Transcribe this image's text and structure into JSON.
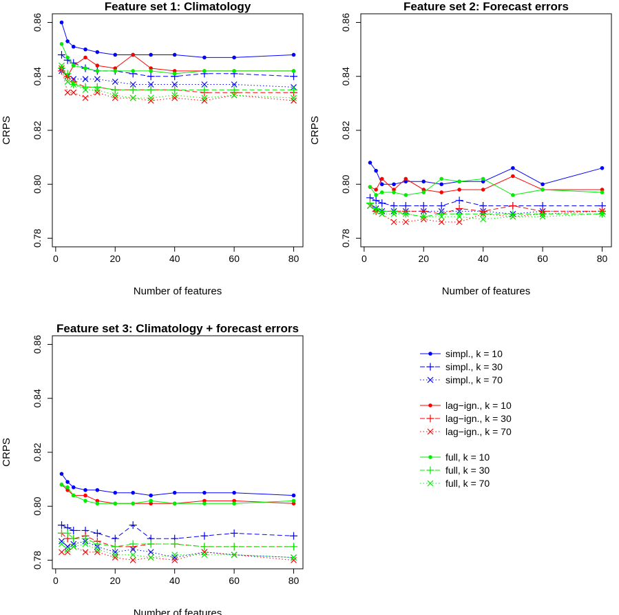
{
  "chart_data": [
    {
      "type": "line",
      "title": "Feature set 1: Climatology",
      "xlabel": "Number of features",
      "ylabel": "CRPS",
      "xlim": [
        2,
        80
      ],
      "ylim": [
        0.78,
        0.86
      ],
      "xticks": [
        "0",
        "20",
        "40",
        "60",
        "80"
      ],
      "yticks": [
        "0.78",
        "0.80",
        "0.82",
        "0.84",
        "0.86"
      ],
      "x": [
        2,
        4,
        6,
        10,
        14,
        20,
        26,
        32,
        40,
        50,
        60,
        80
      ],
      "series": [
        {
          "id": "s10",
          "values": [
            0.86,
            0.853,
            0.851,
            0.85,
            0.849,
            0.848,
            0.848,
            0.848,
            0.848,
            0.847,
            0.847,
            0.848
          ]
        },
        {
          "id": "s30",
          "values": [
            0.848,
            0.846,
            0.845,
            0.843,
            0.842,
            0.842,
            0.841,
            0.84,
            0.84,
            0.841,
            0.841,
            0.84
          ]
        },
        {
          "id": "s70",
          "values": [
            0.842,
            0.84,
            0.839,
            0.839,
            0.839,
            0.838,
            0.837,
            0.837,
            0.837,
            0.837,
            0.837,
            0.836
          ]
        },
        {
          "id": "l10",
          "values": [
            0.843,
            0.84,
            0.844,
            0.847,
            0.844,
            0.843,
            0.848,
            0.843,
            0.842,
            0.842,
            0.842,
            0.842
          ]
        },
        {
          "id": "l30",
          "values": [
            0.842,
            0.84,
            0.838,
            0.836,
            0.836,
            0.835,
            0.835,
            0.835,
            0.835,
            0.834,
            0.834,
            0.834
          ]
        },
        {
          "id": "l70",
          "values": [
            0.843,
            0.834,
            0.834,
            0.832,
            0.834,
            0.832,
            0.832,
            0.831,
            0.832,
            0.831,
            0.833,
            0.831
          ]
        },
        {
          "id": "f10",
          "values": [
            0.852,
            0.847,
            0.844,
            0.843,
            0.842,
            0.842,
            0.842,
            0.842,
            0.841,
            0.842,
            0.842,
            0.842
          ]
        },
        {
          "id": "f30",
          "values": [
            0.843,
            0.841,
            0.837,
            0.836,
            0.836,
            0.835,
            0.835,
            0.835,
            0.835,
            0.835,
            0.835,
            0.835
          ]
        },
        {
          "id": "f70",
          "values": [
            0.844,
            0.838,
            0.837,
            0.835,
            0.835,
            0.833,
            0.832,
            0.832,
            0.833,
            0.832,
            0.833,
            0.832
          ]
        }
      ]
    },
    {
      "type": "line",
      "title": "Feature set 2: Forecast errors",
      "xlabel": "Number of features",
      "ylabel": "CRPS",
      "xlim": [
        2,
        80
      ],
      "ylim": [
        0.78,
        0.86
      ],
      "xticks": [
        "0",
        "20",
        "40",
        "60",
        "80"
      ],
      "yticks": [
        "0.78",
        "0.80",
        "0.82",
        "0.84",
        "0.86"
      ],
      "x": [
        2,
        4,
        6,
        10,
        14,
        20,
        26,
        32,
        40,
        50,
        60,
        80
      ],
      "series": [
        {
          "id": "s10",
          "values": [
            0.808,
            0.805,
            0.8,
            0.8,
            0.801,
            0.801,
            0.8,
            0.801,
            0.801,
            0.806,
            0.8,
            0.806
          ]
        },
        {
          "id": "s30",
          "values": [
            0.795,
            0.794,
            0.793,
            0.792,
            0.792,
            0.792,
            0.792,
            0.794,
            0.792,
            0.792,
            0.792,
            0.792
          ]
        },
        {
          "id": "s70",
          "values": [
            0.792,
            0.791,
            0.79,
            0.79,
            0.79,
            0.79,
            0.79,
            0.79,
            0.79,
            0.789,
            0.79,
            0.79
          ]
        },
        {
          "id": "l10",
          "values": [
            0.799,
            0.798,
            0.802,
            0.798,
            0.802,
            0.798,
            0.797,
            0.798,
            0.798,
            0.803,
            0.798,
            0.798
          ]
        },
        {
          "id": "l30",
          "values": [
            0.793,
            0.79,
            0.79,
            0.79,
            0.79,
            0.79,
            0.789,
            0.791,
            0.79,
            0.792,
            0.79,
            0.79
          ]
        },
        {
          "id": "l70",
          "values": [
            0.792,
            0.79,
            0.789,
            0.786,
            0.786,
            0.787,
            0.786,
            0.786,
            0.789,
            0.788,
            0.789,
            0.79
          ]
        },
        {
          "id": "f10",
          "values": [
            0.799,
            0.796,
            0.797,
            0.797,
            0.796,
            0.797,
            0.802,
            0.801,
            0.802,
            0.796,
            0.798,
            0.797
          ]
        },
        {
          "id": "f30",
          "values": [
            0.793,
            0.791,
            0.79,
            0.79,
            0.789,
            0.788,
            0.789,
            0.789,
            0.789,
            0.789,
            0.789,
            0.789
          ]
        },
        {
          "id": "f70",
          "values": [
            0.792,
            0.79,
            0.789,
            0.789,
            0.789,
            0.788,
            0.788,
            0.788,
            0.787,
            0.788,
            0.788,
            0.789
          ]
        }
      ]
    },
    {
      "type": "line",
      "title": "Feature set 3: Climatology + forecast errors",
      "xlabel": "Number of features",
      "ylabel": "CRPS",
      "xlim": [
        2,
        80
      ],
      "ylim": [
        0.78,
        0.86
      ],
      "xticks": [
        "0",
        "20",
        "40",
        "60",
        "80"
      ],
      "yticks": [
        "0.78",
        "0.80",
        "0.82",
        "0.84",
        "0.86"
      ],
      "x": [
        2,
        4,
        6,
        10,
        14,
        20,
        26,
        32,
        40,
        50,
        60,
        80
      ],
      "series": [
        {
          "id": "s10",
          "values": [
            0.812,
            0.809,
            0.807,
            0.806,
            0.806,
            0.805,
            0.805,
            0.804,
            0.805,
            0.805,
            0.805,
            0.804
          ]
        },
        {
          "id": "s30",
          "values": [
            0.793,
            0.792,
            0.791,
            0.791,
            0.79,
            0.788,
            0.793,
            0.788,
            0.788,
            0.789,
            0.79,
            0.789
          ]
        },
        {
          "id": "s70",
          "values": [
            0.787,
            0.785,
            0.786,
            0.787,
            0.785,
            0.783,
            0.784,
            0.783,
            0.781,
            0.783,
            0.782,
            0.781
          ]
        },
        {
          "id": "l10",
          "values": [
            0.808,
            0.806,
            0.804,
            0.804,
            0.802,
            0.801,
            0.801,
            0.801,
            0.801,
            0.802,
            0.802,
            0.801
          ]
        },
        {
          "id": "l30",
          "values": [
            0.79,
            0.788,
            0.788,
            0.789,
            0.787,
            0.785,
            0.785,
            0.786,
            0.786,
            0.785,
            0.785,
            0.785
          ]
        },
        {
          "id": "l70",
          "values": [
            0.783,
            0.783,
            0.785,
            0.783,
            0.783,
            0.781,
            0.78,
            0.781,
            0.78,
            0.783,
            0.782,
            0.78
          ]
        },
        {
          "id": "f10",
          "values": [
            0.808,
            0.807,
            0.804,
            0.802,
            0.801,
            0.801,
            0.801,
            0.802,
            0.801,
            0.801,
            0.801,
            0.802
          ]
        },
        {
          "id": "f30",
          "values": [
            0.79,
            0.79,
            0.788,
            0.788,
            0.786,
            0.785,
            0.786,
            0.786,
            0.786,
            0.785,
            0.785,
            0.785
          ]
        },
        {
          "id": "f70",
          "values": [
            0.786,
            0.784,
            0.785,
            0.786,
            0.784,
            0.782,
            0.782,
            0.781,
            0.782,
            0.782,
            0.782,
            0.781
          ]
        }
      ]
    }
  ],
  "legend": {
    "placement": "bottom-right",
    "items": [
      {
        "id": "s10",
        "label": "simpl., k = 10"
      },
      {
        "id": "s30",
        "label": "simpl., k = 30"
      },
      {
        "id": "s70",
        "label": "simpl., k = 70"
      },
      {
        "id": "l10",
        "label": "lag−ign., k = 10"
      },
      {
        "id": "l30",
        "label": "lag−ign., k = 30"
      },
      {
        "id": "l70",
        "label": "lag−ign., k = 70"
      },
      {
        "id": "f10",
        "label": "full, k = 10"
      },
      {
        "id": "f30",
        "label": "full, k = 30"
      },
      {
        "id": "f70",
        "label": "full, k = 70"
      }
    ]
  },
  "styles": {
    "s10": {
      "color": "#0000ff",
      "dash": "solid",
      "marker": "dot"
    },
    "s30": {
      "color": "#0000ff",
      "dash": "dashed",
      "marker": "plus"
    },
    "s70": {
      "color": "#0000ff",
      "dash": "dotted",
      "marker": "cross"
    },
    "l10": {
      "color": "#ff0000",
      "dash": "solid",
      "marker": "dot"
    },
    "l30": {
      "color": "#ff0000",
      "dash": "dashed",
      "marker": "plus"
    },
    "l70": {
      "color": "#ff0000",
      "dash": "dotted",
      "marker": "cross"
    },
    "f10": {
      "color": "#00ee00",
      "dash": "solid",
      "marker": "dot"
    },
    "f30": {
      "color": "#00ee00",
      "dash": "dashed",
      "marker": "plus"
    },
    "f70": {
      "color": "#00ee00",
      "dash": "dotted",
      "marker": "cross"
    }
  }
}
